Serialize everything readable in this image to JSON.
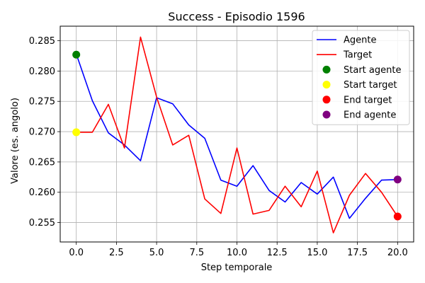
{
  "chart_data": {
    "type": "line",
    "title": "Success - Episodio 1596",
    "xlabel": "Step temporale",
    "ylabel": "Valore (es. angolo)",
    "xlim": [
      -1.0,
      21.0
    ],
    "ylim": [
      0.2518,
      0.2874
    ],
    "xticks": [
      0.0,
      2.5,
      5.0,
      7.5,
      10.0,
      12.5,
      15.0,
      17.5,
      20.0
    ],
    "xtick_labels": [
      "0.0",
      "2.5",
      "5.0",
      "7.5",
      "10.0",
      "12.5",
      "15.0",
      "17.5",
      "20.0"
    ],
    "yticks": [
      0.255,
      0.26,
      0.265,
      0.27,
      0.275,
      0.28,
      0.285
    ],
    "ytick_labels": [
      "0.255",
      "0.260",
      "0.265",
      "0.270",
      "0.275",
      "0.280",
      "0.285"
    ],
    "grid": true,
    "legend_position": "top-right",
    "x": [
      0,
      1,
      2,
      3,
      4,
      5,
      6,
      7,
      8,
      9,
      10,
      11,
      12,
      13,
      14,
      15,
      16,
      17,
      18,
      19,
      20
    ],
    "series": [
      {
        "name": "Agente",
        "color": "#0000ff",
        "values": [
          0.2828,
          0.2751,
          0.2698,
          0.2678,
          0.2652,
          0.2756,
          0.2746,
          0.2711,
          0.2689,
          0.262,
          0.261,
          0.2644,
          0.2603,
          0.2584,
          0.2616,
          0.2597,
          0.2625,
          0.2557,
          0.259,
          0.262,
          0.2621
        ]
      },
      {
        "name": "Target",
        "color": "#ff0000",
        "values": [
          0.2699,
          0.2699,
          0.2745,
          0.2673,
          0.2856,
          0.2757,
          0.2678,
          0.2694,
          0.2589,
          0.2565,
          0.2673,
          0.2564,
          0.257,
          0.261,
          0.2576,
          0.2635,
          0.2533,
          0.2595,
          0.2631,
          0.26,
          0.256
        ]
      }
    ],
    "markers": [
      {
        "name": "Start agente",
        "color": "#008000",
        "x": 0,
        "y": 0.2827
      },
      {
        "name": "Start target",
        "color": "#ffff00",
        "x": 0,
        "y": 0.2699
      },
      {
        "name": "End target",
        "color": "#ff0000",
        "x": 20,
        "y": 0.256
      },
      {
        "name": "End agente",
        "color": "#800080",
        "x": 20,
        "y": 0.2621
      }
    ]
  }
}
